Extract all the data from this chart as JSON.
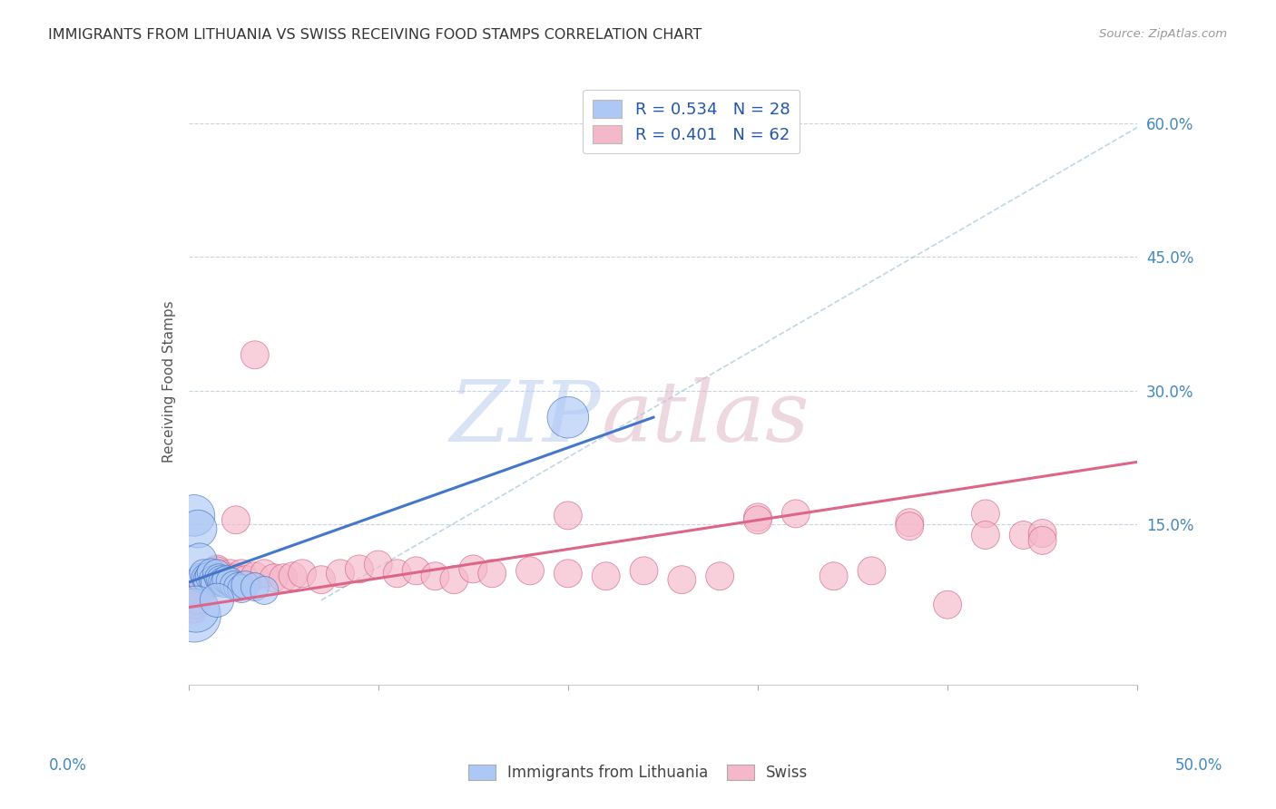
{
  "title": "IMMIGRANTS FROM LITHUANIA VS SWISS RECEIVING FOOD STAMPS CORRELATION CHART",
  "source": "Source: ZipAtlas.com",
  "ylabel": "Receiving Food Stamps",
  "ytick_labels": [
    "15.0%",
    "30.0%",
    "45.0%",
    "60.0%"
  ],
  "ytick_values": [
    0.15,
    0.3,
    0.45,
    0.6
  ],
  "xlim": [
    0.0,
    0.5
  ],
  "ylim": [
    -0.03,
    0.65
  ],
  "legend_label1": "R = 0.534   N = 28",
  "legend_label2": "R = 0.401   N = 62",
  "legend_color1": "#adc8f5",
  "legend_color2": "#f5b8ca",
  "scatter1_color": "#adc8f5",
  "scatter2_color": "#f5b8ca",
  "line1_color": "#4477cc",
  "line2_color": "#dd6688",
  "dash_color": "#b0cce0",
  "background_color": "#ffffff",
  "grid_color": "#c8d4e0",
  "title_color": "#333333",
  "source_color": "#999999",
  "axis_label_color": "#555555",
  "tick_color": "#4488bb",
  "legend_text_color": "#2255aa",
  "bottom_legend_color": "#444444",
  "lithuania_x": [
    0.003,
    0.005,
    0.006,
    0.007,
    0.008,
    0.009,
    0.01,
    0.011,
    0.012,
    0.013,
    0.014,
    0.015,
    0.016,
    0.017,
    0.018,
    0.019,
    0.02,
    0.022,
    0.024,
    0.026,
    0.028,
    0.03,
    0.035,
    0.04,
    0.003,
    0.004,
    0.2,
    0.015
  ],
  "lithuania_y": [
    0.16,
    0.145,
    0.11,
    0.09,
    0.095,
    0.09,
    0.088,
    0.092,
    0.096,
    0.088,
    0.085,
    0.095,
    0.09,
    0.088,
    0.086,
    0.084,
    0.088,
    0.086,
    0.082,
    0.08,
    0.078,
    0.082,
    0.08,
    0.076,
    0.048,
    0.055,
    0.27,
    0.065
  ],
  "lithuania_size": [
    120,
    100,
    80,
    60,
    55,
    55,
    55,
    55,
    55,
    55,
    55,
    55,
    55,
    55,
    55,
    55,
    55,
    55,
    55,
    55,
    55,
    55,
    55,
    55,
    200,
    150,
    120,
    80
  ],
  "swiss_x": [
    0.003,
    0.004,
    0.005,
    0.006,
    0.007,
    0.008,
    0.009,
    0.01,
    0.011,
    0.012,
    0.013,
    0.014,
    0.015,
    0.016,
    0.017,
    0.018,
    0.019,
    0.02,
    0.022,
    0.024,
    0.026,
    0.028,
    0.03,
    0.035,
    0.04,
    0.045,
    0.05,
    0.055,
    0.06,
    0.07,
    0.08,
    0.09,
    0.1,
    0.11,
    0.12,
    0.13,
    0.14,
    0.15,
    0.16,
    0.18,
    0.2,
    0.22,
    0.24,
    0.26,
    0.28,
    0.3,
    0.32,
    0.34,
    0.36,
    0.38,
    0.4,
    0.42,
    0.44,
    0.45,
    0.015,
    0.025,
    0.035,
    0.2,
    0.3,
    0.38,
    0.42,
    0.45
  ],
  "swiss_y": [
    0.055,
    0.06,
    0.065,
    0.072,
    0.075,
    0.08,
    0.082,
    0.085,
    0.088,
    0.09,
    0.092,
    0.095,
    0.1,
    0.095,
    0.092,
    0.09,
    0.088,
    0.092,
    0.095,
    0.09,
    0.088,
    0.095,
    0.088,
    0.092,
    0.095,
    0.09,
    0.09,
    0.092,
    0.095,
    0.088,
    0.095,
    0.1,
    0.105,
    0.095,
    0.098,
    0.092,
    0.088,
    0.1,
    0.095,
    0.098,
    0.095,
    0.092,
    0.098,
    0.088,
    0.092,
    0.158,
    0.162,
    0.092,
    0.098,
    0.152,
    0.06,
    0.162,
    0.138,
    0.14,
    0.098,
    0.155,
    0.34,
    0.16,
    0.155,
    0.148,
    0.138,
    0.132
  ],
  "swiss_size": [
    55,
    55,
    55,
    55,
    55,
    55,
    55,
    55,
    55,
    55,
    55,
    55,
    55,
    55,
    55,
    55,
    55,
    55,
    55,
    55,
    55,
    55,
    55,
    55,
    55,
    55,
    55,
    55,
    55,
    55,
    55,
    55,
    55,
    55,
    55,
    55,
    55,
    55,
    55,
    55,
    55,
    55,
    55,
    55,
    55,
    55,
    55,
    55,
    55,
    55,
    55,
    55,
    55,
    55,
    55,
    55,
    55,
    55,
    55,
    55,
    55,
    55
  ],
  "lith_line_x0": 0.0,
  "lith_line_x1": 0.245,
  "lith_line_y0": 0.085,
  "lith_line_y1": 0.27,
  "swiss_line_x0": 0.0,
  "swiss_line_x1": 0.5,
  "swiss_line_y0": 0.057,
  "swiss_line_y1": 0.22,
  "dash_line_x0": 0.07,
  "dash_line_x1": 0.5,
  "dash_line_y0": 0.065,
  "dash_line_y1": 0.595
}
